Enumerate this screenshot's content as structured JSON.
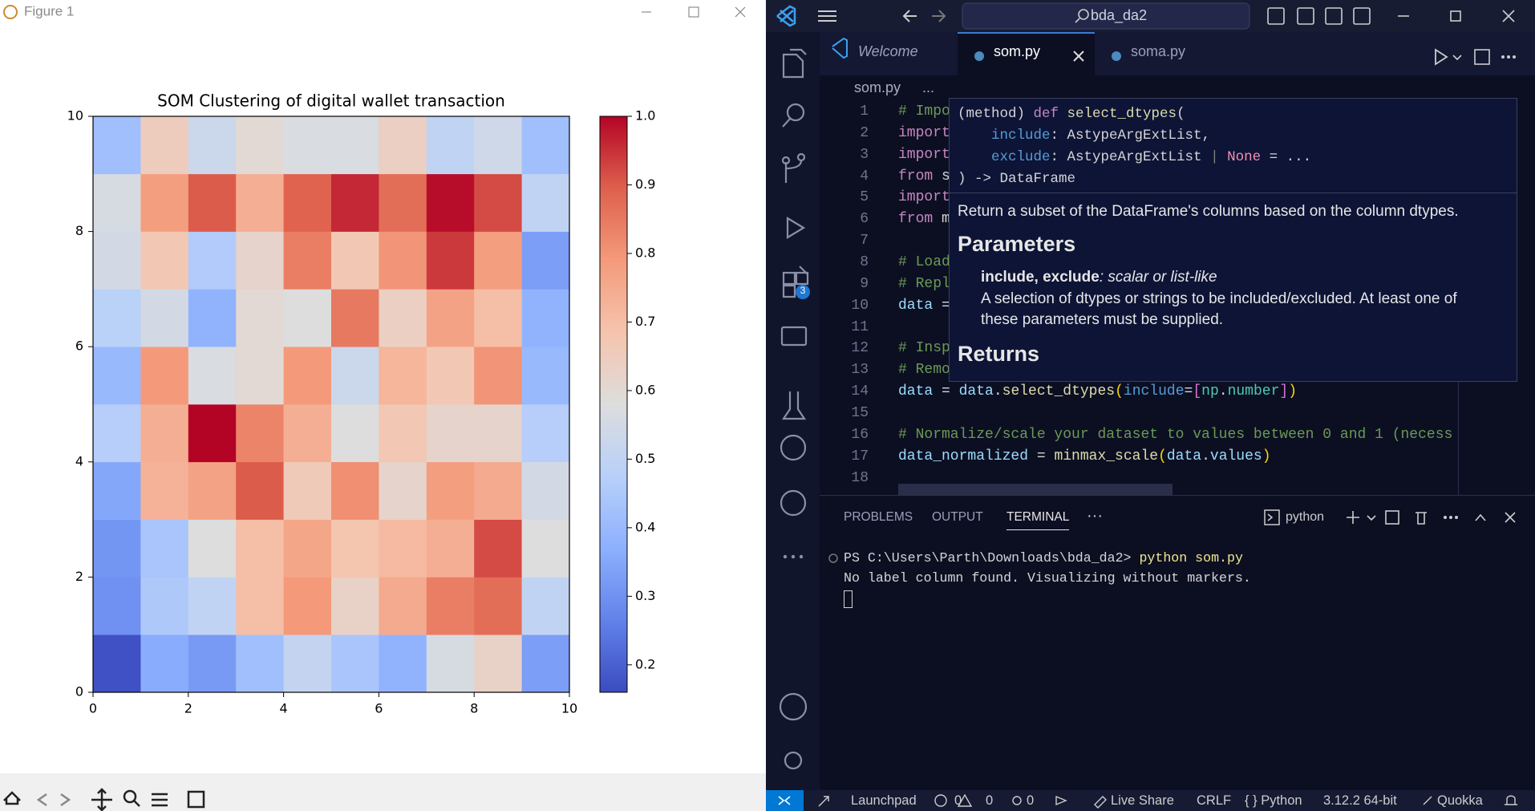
{
  "window": {
    "title": "Figure 1"
  },
  "chart_data": {
    "type": "heatmap",
    "title": "SOM Clustering of digital wallet transaction",
    "z": [
      [
        0.17,
        0.36,
        0.32,
        0.42,
        0.51,
        0.44,
        0.38,
        0.56,
        0.63,
        0.33
      ],
      [
        0.3,
        0.45,
        0.5,
        0.7,
        0.79,
        0.63,
        0.75,
        0.84,
        0.87,
        0.5
      ],
      [
        0.31,
        0.44,
        0.58,
        0.7,
        0.76,
        0.68,
        0.71,
        0.74,
        0.92,
        0.58
      ],
      [
        0.35,
        0.73,
        0.77,
        0.9,
        0.66,
        0.81,
        0.62,
        0.78,
        0.75,
        0.55
      ],
      [
        0.47,
        0.74,
        1.0,
        0.83,
        0.74,
        0.58,
        0.67,
        0.62,
        0.62,
        0.47
      ],
      [
        0.4,
        0.79,
        0.57,
        0.6,
        0.79,
        0.53,
        0.72,
        0.67,
        0.8,
        0.4
      ],
      [
        0.48,
        0.55,
        0.38,
        0.6,
        0.58,
        0.85,
        0.64,
        0.77,
        0.7,
        0.38
      ],
      [
        0.55,
        0.67,
        0.46,
        0.62,
        0.84,
        0.67,
        0.8,
        0.94,
        0.78,
        0.33
      ],
      [
        0.56,
        0.78,
        0.9,
        0.74,
        0.89,
        0.96,
        0.87,
        0.99,
        0.92,
        0.5
      ],
      [
        0.42,
        0.65,
        0.53,
        0.6,
        0.57,
        0.57,
        0.64,
        0.5,
        0.54,
        0.42
      ]
    ],
    "xlim": [
      0,
      10
    ],
    "ylim": [
      0,
      10
    ],
    "xticks": [
      0,
      2,
      4,
      6,
      8,
      10
    ],
    "yticks": [
      0,
      2,
      4,
      6,
      8,
      10
    ],
    "colormap": "coolwarm",
    "clim": [
      0.16,
      1.0
    ],
    "cticks": [
      0.2,
      0.3,
      0.4,
      0.5,
      0.6,
      0.7,
      0.8,
      0.9,
      {
        "value": 1,
        "label": "1.0"
      }
    ]
  },
  "vscode": {
    "search": "bda_da2",
    "badge": 3,
    "tabs": [
      "Welcome",
      "som.py",
      "soma.py"
    ],
    "breadcrumb": [
      "som.py",
      "..."
    ],
    "code": [
      {
        "number": 1,
        "tokens": [
          {
            "text": "# Impo",
            "color": "#6a9955"
          }
        ]
      },
      {
        "number": 2,
        "tokens": [
          {
            "text": "import",
            "color": "#c586c0"
          }
        ]
      },
      {
        "number": 3,
        "tokens": [
          {
            "text": "import",
            "color": "#c586c0"
          }
        ]
      },
      {
        "number": 4,
        "tokens": [
          {
            "text": "from",
            "color": "#c586c0"
          },
          {
            "text": " s",
            "color": "#d4d4d4"
          }
        ]
      },
      {
        "number": 5,
        "tokens": [
          {
            "text": "import",
            "color": "#c586c0"
          }
        ]
      },
      {
        "number": 6,
        "tokens": [
          {
            "text": "from",
            "color": "#c586c0"
          },
          {
            "text": " m",
            "color": "#d4d4d4"
          }
        ]
      },
      {
        "number": 7,
        "tokens": []
      },
      {
        "number": 8,
        "tokens": [
          {
            "text": "# Load",
            "color": "#6a9955"
          }
        ]
      },
      {
        "number": 9,
        "tokens": [
          {
            "text": "# Repl",
            "color": "#6a9955"
          }
        ]
      },
      {
        "number": 10,
        "tokens": [
          {
            "text": "data",
            "color": "#9cdcfe"
          },
          {
            "text": " =",
            "color": "#d4d4d4"
          }
        ]
      },
      {
        "number": 11,
        "tokens": []
      },
      {
        "number": 12,
        "tokens": [
          {
            "text": "# Insp",
            "color": "#6a9955"
          }
        ]
      },
      {
        "number": 13,
        "tokens": [
          {
            "text": "# Remo",
            "color": "#6a9955"
          }
        ]
      },
      {
        "number": 14,
        "tokens": [
          {
            "text": "data",
            "color": "#9cdcfe"
          },
          {
            "text": " = ",
            "color": "#d4d4d4"
          },
          {
            "text": "data",
            "color": "#9cdcfe"
          },
          {
            "text": ".",
            "color": "#d4d4d4"
          },
          {
            "text": "select_dtypes",
            "color": "#dcdcaa"
          },
          {
            "text": "(",
            "color": "#ffd700"
          },
          {
            "text": "include",
            "color": "#569cd6"
          },
          {
            "text": "=",
            "color": "#d4d4d4"
          },
          {
            "text": "[",
            "color": "#da70d6"
          },
          {
            "text": "np",
            "color": "#4ec9b0"
          },
          {
            "text": ".",
            "color": "#d4d4d4"
          },
          {
            "text": "number",
            "color": "#4ec9b0"
          },
          {
            "text": "]",
            "color": "#da70d6"
          },
          {
            "text": ")",
            "color": "#ffd700"
          }
        ]
      },
      {
        "number": 15,
        "tokens": []
      },
      {
        "number": 16,
        "tokens": [
          {
            "text": "# Normalize/scale your dataset to values between 0 and 1 (necess",
            "color": "#6a9955"
          }
        ]
      },
      {
        "number": 17,
        "tokens": [
          {
            "text": "data_normalized",
            "color": "#9cdcfe"
          },
          {
            "text": " = ",
            "color": "#d4d4d4"
          },
          {
            "text": "minmax_scale",
            "color": "#dcdcaa"
          },
          {
            "text": "(",
            "color": "#ffd700"
          },
          {
            "text": "data",
            "color": "#9cdcfe"
          },
          {
            "text": ".",
            "color": "#d4d4d4"
          },
          {
            "text": "values",
            "color": "#9cdcfe"
          },
          {
            "text": ")",
            "color": "#ffd700"
          }
        ]
      },
      {
        "number": 18,
        "tokens": []
      }
    ],
    "hover": {
      "signature": [
        [
          {
            "text": "(method) ",
            "color": "#d4d4d4"
          },
          {
            "text": "def",
            "color": "#c586c0"
          },
          {
            "text": " select_dtypes",
            "color": "#dcdcaa"
          },
          {
            "text": "(",
            "color": "#d4d4d4"
          }
        ],
        [
          {
            "text": "    include",
            "color": "#569cd6"
          },
          {
            "text": ": AstypeArgExtList,",
            "color": "#d4d4d4"
          }
        ],
        [
          {
            "text": "    exclude",
            "color": "#569cd6"
          },
          {
            "text": ": AstypeArgExtList ",
            "color": "#d4d4d4"
          },
          {
            "text": "|",
            "color": "#808080"
          },
          {
            "text": " None",
            "color": "#f48fb1"
          },
          {
            "text": " = ...",
            "color": "#d4d4d4"
          }
        ],
        [
          {
            "text": ") -> DataFrame",
            "color": "#d4d4d4"
          }
        ]
      ],
      "description": "Return a subset of the DataFrame's columns based on the column dtypes.",
      "parameters_heading": "Parameters",
      "param_name": "include, exclude",
      "param_type": ": scalar or list-like",
      "param_desc": [
        "A selection of dtypes or strings to be included/excluded. At least one of",
        "these parameters must be supplied."
      ],
      "returns_heading": "Returns"
    },
    "panel": {
      "tabs": [
        "PROBLEMS",
        "OUTPUT",
        "TERMINAL"
      ],
      "more": "···",
      "shell": "python"
    },
    "terminal": {
      "prompt": "PS C:\\Users\\Parth\\Downloads\\bda_da2> ",
      "command": "python som.py",
      "output": "No label column found. Visualizing without markers."
    },
    "status": {
      "launchpad": "Launchpad",
      "errors": 0,
      "warnings": 0,
      "ports": 0,
      "live_share": "Live Share",
      "eol": "CRLF",
      "language": "{ } Python",
      "interpreter": "3.12.2 64-bit",
      "quokka": "Quokka"
    }
  }
}
